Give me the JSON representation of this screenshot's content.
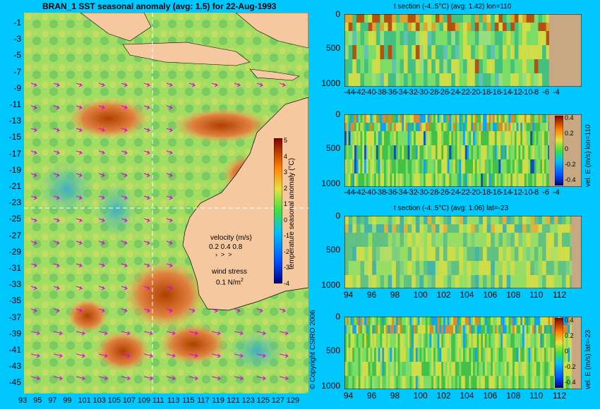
{
  "main_map": {
    "title": "BRAN_1  SST seasonal anomaly  (avg: 1.5) for 22-Aug-1993",
    "lat_ticks": [
      "-1",
      "-3",
      "-5",
      "-7",
      "-9",
      "-11",
      "-13",
      "-15",
      "-17",
      "-19",
      "-21",
      "-23",
      "-25",
      "-27",
      "-29",
      "-31",
      "-33",
      "-35",
      "-37",
      "-39",
      "-41",
      "-43",
      "-45"
    ],
    "lon_ticks": [
      "93",
      "95",
      "97",
      "99",
      "101",
      "103",
      "105",
      "107",
      "109",
      "111",
      "113",
      "115",
      "117",
      "119",
      "121",
      "123",
      "125",
      "127",
      "129"
    ],
    "colorbar_label": "temperature seasonal anomaly (°C)",
    "colorbar_ticks": [
      "5",
      "4",
      "3",
      "2",
      "1",
      "0",
      "-1",
      "-2",
      "-3",
      "-4"
    ],
    "velocity_legend": {
      "title": "velocity (m/s)",
      "values": "0.2 0.4 0.8"
    },
    "wind_legend": {
      "title": "wind stress",
      "value": "0.1 N/m",
      "sup": "2"
    },
    "copyright": "© Copyright CSIRO 2006"
  },
  "panels": [
    {
      "title": "t section (-4..5°C) (avg: 1.42) lon=110",
      "x_ticks": [
        "-44",
        "-42",
        "-40",
        "-38",
        "-36",
        "-34",
        "-32",
        "-30",
        "-28",
        "-26",
        "-24",
        "-22",
        "-20",
        "-18",
        "-16",
        "-14",
        "-12",
        "-10",
        "-8",
        "-6",
        "-4"
      ],
      "y_ticks": [
        "0",
        "500",
        "1000"
      ],
      "has_colorbar": false
    },
    {
      "title": "",
      "x_ticks": [
        "-44",
        "-42",
        "-40",
        "-38",
        "-36",
        "-34",
        "-32",
        "-30",
        "-28",
        "-26",
        "-24",
        "-22",
        "-20",
        "-18",
        "-16",
        "-14",
        "-12",
        "-10",
        "-8",
        "-6",
        "-4"
      ],
      "y_ticks": [
        "0",
        "500",
        "1000"
      ],
      "has_colorbar": true,
      "colorbar_label": "vel. E (m/s) lon=110",
      "colorbar_ticks": [
        "0.4",
        "0.2",
        "0",
        "-0.2",
        "-0.4"
      ]
    },
    {
      "title": "t section (-4..5°C) (avg: 1.06) lat=-23",
      "x_ticks": [
        "94",
        "96",
        "98",
        "100",
        "102",
        "104",
        "106",
        "108",
        "110",
        "112"
      ],
      "y_ticks": [
        "0",
        "500",
        "1000"
      ],
      "has_colorbar": false
    },
    {
      "title": "",
      "x_ticks": [
        "94",
        "96",
        "98",
        "100",
        "102",
        "104",
        "106",
        "108",
        "110",
        "112"
      ],
      "y_ticks": [
        "0",
        "500",
        "1000"
      ],
      "has_colorbar": true,
      "colorbar_label": "vel. E (m/s) lat=-23",
      "colorbar_ticks": [
        "0.4",
        "0.2",
        "0",
        "-0.2",
        "-0.4"
      ]
    }
  ],
  "chart_data": [
    {
      "type": "heatmap",
      "title": "BRAN_1  SST seasonal anomaly  (avg: 1.5) for 22-Aug-1993",
      "x_range": [
        93,
        130
      ],
      "y_range": [
        -45,
        0
      ],
      "colorbar_range": [
        -4,
        5
      ],
      "colorbar_label": "temperature seasonal anomaly (°C)"
    },
    {
      "type": "heatmap",
      "title": "t section (-4..5°C) (avg: 1.42) lon=110",
      "x_range": [
        -45,
        -3
      ],
      "y_range": [
        1050,
        0
      ]
    },
    {
      "type": "heatmap",
      "title": "",
      "x_range": [
        -45,
        -3
      ],
      "y_range": [
        1050,
        0
      ],
      "colorbar_range": [
        -0.4,
        0.4
      ],
      "colorbar_label": "vel. E (m/s) lon=110"
    },
    {
      "type": "heatmap",
      "title": "t section (-4..5°C) (avg: 1.06) lat=-23",
      "x_range": [
        93,
        114
      ],
      "y_range": [
        1050,
        0
      ]
    },
    {
      "type": "heatmap",
      "title": "",
      "x_range": [
        93,
        114
      ],
      "y_range": [
        1050,
        0
      ],
      "colorbar_range": [
        -0.4,
        0.4
      ],
      "colorbar_label": "vel. E (m/s) lat=-23"
    }
  ],
  "colors": {
    "background": "#00c8ff",
    "land": "#f5c8a0",
    "section_land": "#c8a882",
    "arrow": "#e000e0"
  }
}
